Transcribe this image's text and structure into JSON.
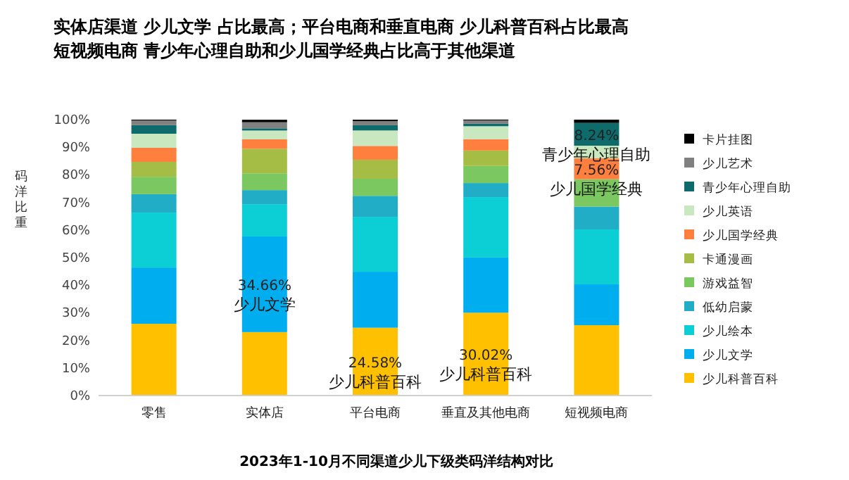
{
  "chart_data": {
    "type": "bar",
    "stacked": true,
    "title": "实体店渠道 少儿文学 占比最高；平台电商和垂直电商 少儿科普百科占比最高",
    "subtitle": "短视频电商 青少年心理自助和少儿国学经典占比高于其他渠道",
    "ylabel": "码洋比重",
    "categories": [
      "零售",
      "实体店",
      "平台电商",
      "垂直及其他电商",
      "短视频电商"
    ],
    "ylim": [
      0,
      100
    ],
    "yticks": [
      {
        "value": 0,
        "label": "0%"
      },
      {
        "value": 10,
        "label": "10%"
      },
      {
        "value": 20,
        "label": "20%"
      },
      {
        "value": 30,
        "label": "30%"
      },
      {
        "value": 40,
        "label": "40%"
      },
      {
        "value": 50,
        "label": "50%"
      },
      {
        "value": 60,
        "label": "60%"
      },
      {
        "value": 70,
        "label": "70%"
      },
      {
        "value": 80,
        "label": "80%"
      },
      {
        "value": 90,
        "label": "90%"
      },
      {
        "value": 100,
        "label": "100%"
      }
    ],
    "legend": "right",
    "series": [
      {
        "name": "少儿科普百科",
        "color": "#ffc000",
        "values": [
          26.0,
          23.0,
          24.58,
          30.02,
          25.5
        ],
        "value_labels": [
          null,
          null,
          "24.58%",
          "30.02%",
          null
        ]
      },
      {
        "name": "少儿文学",
        "color": "#00aeef",
        "values": [
          20.4,
          34.66,
          20.3,
          20.0,
          14.8
        ],
        "value_labels": [
          null,
          "34.66%",
          null,
          null,
          null
        ]
      },
      {
        "name": "少儿绘本",
        "color": "#0ccfd6",
        "values": [
          19.9,
          11.7,
          19.9,
          21.9,
          19.9
        ]
      },
      {
        "name": "低幼启蒙",
        "color": "#22adc6",
        "values": [
          6.7,
          5.1,
          7.6,
          5.1,
          8.3
        ]
      },
      {
        "name": "游戏益智",
        "color": "#7ac85f",
        "values": [
          6.3,
          6.1,
          6.2,
          6.2,
          9.9
        ]
      },
      {
        "name": "卡通漫画",
        "color": "#a5bd45",
        "values": [
          5.4,
          8.9,
          6.9,
          5.6,
          0
        ]
      },
      {
        "name": "少儿国学经典",
        "color": "#ff7f3f",
        "values": [
          5.1,
          3.4,
          5.0,
          4.1,
          7.56
        ],
        "value_labels": [
          null,
          null,
          null,
          null,
          "7.56%"
        ]
      },
      {
        "name": "少儿英语",
        "color": "#c9e8c0",
        "values": [
          5.1,
          3.2,
          5.6,
          4.7,
          4.6
        ]
      },
      {
        "name": "青少年心理自助",
        "color": "#0e6b6b",
        "values": [
          3.1,
          0.8,
          1.9,
          0.9,
          8.24
        ],
        "value_labels": [
          null,
          null,
          null,
          null,
          "8.24%"
        ]
      },
      {
        "name": "少儿艺术",
        "color": "#808080",
        "values": [
          1.7,
          2.2,
          1.5,
          1.2,
          0
        ]
      },
      {
        "name": "卡片挂图",
        "color": "#000000",
        "values": [
          0.3,
          0.9,
          0.5,
          0.3,
          1.2
        ]
      }
    ],
    "annotations": [
      "2023年1-10月不同渠道少儿下级类码洋结构对比"
    ]
  }
}
